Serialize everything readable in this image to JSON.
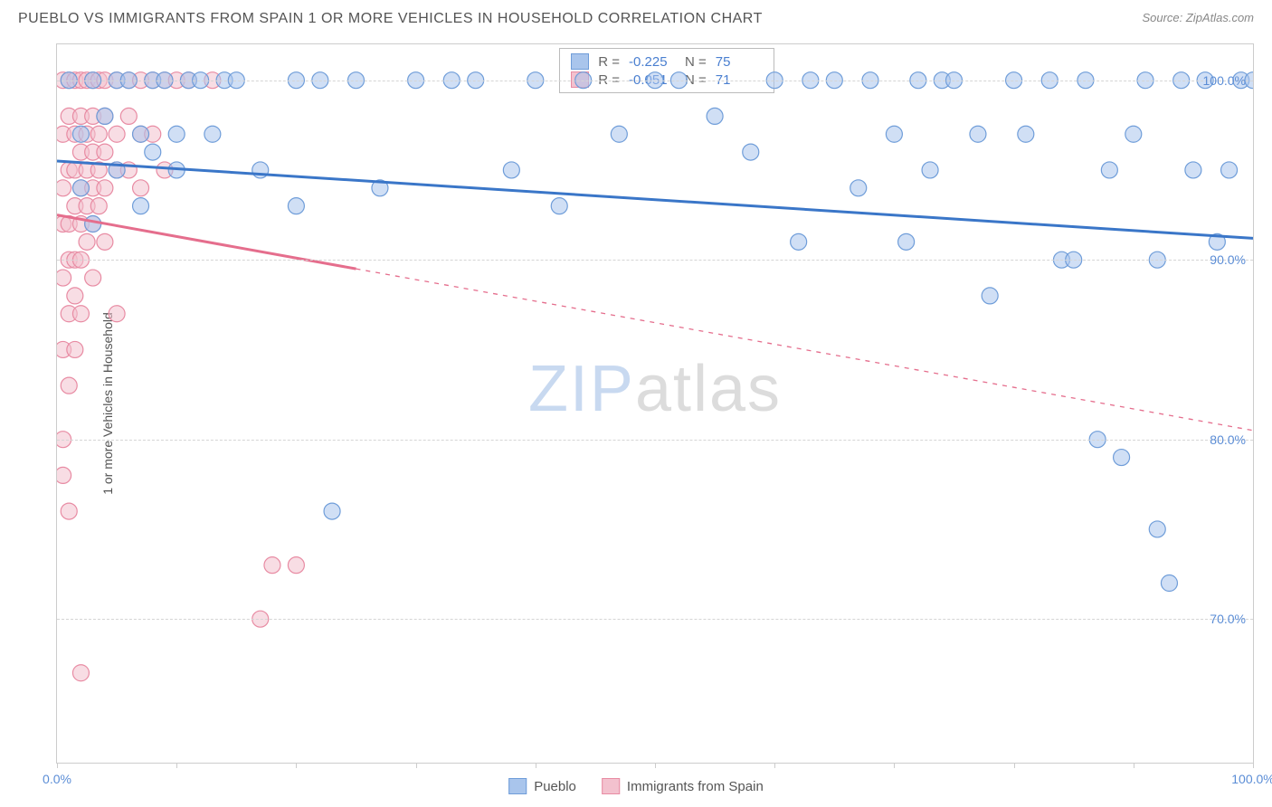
{
  "header": {
    "title": "PUEBLO VS IMMIGRANTS FROM SPAIN 1 OR MORE VEHICLES IN HOUSEHOLD CORRELATION CHART",
    "source": "Source: ZipAtlas.com"
  },
  "chart": {
    "type": "scatter",
    "ylabel": "1 or more Vehicles in Household",
    "xlim": [
      0,
      100
    ],
    "ylim": [
      62,
      102
    ],
    "yticks": [
      70,
      80,
      90,
      100
    ],
    "ytick_labels": [
      "70.0%",
      "80.0%",
      "90.0%",
      "100.0%"
    ],
    "xticks": [
      0,
      10,
      20,
      30,
      40,
      50,
      60,
      70,
      80,
      90,
      100
    ],
    "xtick_labels_shown": {
      "0": "0.0%",
      "100": "100.0%"
    },
    "grid_color": "#d5d5d5",
    "border_color": "#cccccc",
    "background_color": "#ffffff",
    "marker_radius": 9,
    "marker_opacity": 0.55,
    "series": [
      {
        "name": "Pueblo",
        "color_fill": "#a9c5ec",
        "color_stroke": "#6f9dd9",
        "line_color": "#3a76c8",
        "line_width": 3,
        "R": "-0.225",
        "N": "75",
        "regression": {
          "x1": 0,
          "y1": 95.5,
          "x2": 100,
          "y2": 91.2,
          "dashed_from_x": null
        },
        "points": [
          [
            1,
            100
          ],
          [
            2,
            97
          ],
          [
            2,
            94
          ],
          [
            3,
            100
          ],
          [
            3,
            92
          ],
          [
            4,
            98
          ],
          [
            5,
            100
          ],
          [
            5,
            95
          ],
          [
            6,
            100
          ],
          [
            7,
            97
          ],
          [
            7,
            93
          ],
          [
            8,
            100
          ],
          [
            8,
            96
          ],
          [
            9,
            100
          ],
          [
            10,
            97
          ],
          [
            10,
            95
          ],
          [
            11,
            100
          ],
          [
            12,
            100
          ],
          [
            13,
            97
          ],
          [
            14,
            100
          ],
          [
            15,
            100
          ],
          [
            17,
            95
          ],
          [
            20,
            93
          ],
          [
            20,
            100
          ],
          [
            22,
            100
          ],
          [
            23,
            76
          ],
          [
            25,
            100
          ],
          [
            27,
            94
          ],
          [
            30,
            100
          ],
          [
            33,
            100
          ],
          [
            35,
            100
          ],
          [
            38,
            95
          ],
          [
            40,
            100
          ],
          [
            42,
            93
          ],
          [
            44,
            100
          ],
          [
            47,
            97
          ],
          [
            50,
            100
          ],
          [
            52,
            100
          ],
          [
            55,
            98
          ],
          [
            58,
            96
          ],
          [
            60,
            100
          ],
          [
            62,
            91
          ],
          [
            63,
            100
          ],
          [
            65,
            100
          ],
          [
            67,
            94
          ],
          [
            68,
            100
          ],
          [
            70,
            97
          ],
          [
            71,
            91
          ],
          [
            72,
            100
          ],
          [
            73,
            95
          ],
          [
            74,
            100
          ],
          [
            75,
            100
          ],
          [
            77,
            97
          ],
          [
            78,
            88
          ],
          [
            80,
            100
          ],
          [
            81,
            97
          ],
          [
            83,
            100
          ],
          [
            84,
            90
          ],
          [
            85,
            90
          ],
          [
            86,
            100
          ],
          [
            87,
            80
          ],
          [
            88,
            95
          ],
          [
            89,
            79
          ],
          [
            90,
            97
          ],
          [
            91,
            100
          ],
          [
            92,
            90
          ],
          [
            92,
            75
          ],
          [
            93,
            72
          ],
          [
            94,
            100
          ],
          [
            95,
            95
          ],
          [
            96,
            100
          ],
          [
            97,
            91
          ],
          [
            98,
            95
          ],
          [
            99,
            100
          ],
          [
            100,
            100
          ]
        ]
      },
      {
        "name": "Immigrants from Spain",
        "color_fill": "#f3c1ce",
        "color_stroke": "#e88ba3",
        "line_color": "#e56e8d",
        "line_width": 3,
        "R": "-0.051",
        "N": "71",
        "regression": {
          "x1": 0,
          "y1": 92.5,
          "x2": 100,
          "y2": 80.5,
          "dashed_from_x": 25
        },
        "points": [
          [
            0.5,
            100
          ],
          [
            0.5,
            97
          ],
          [
            0.5,
            94
          ],
          [
            0.5,
            92
          ],
          [
            0.5,
            89
          ],
          [
            0.5,
            85
          ],
          [
            0.5,
            80
          ],
          [
            0.5,
            78
          ],
          [
            1,
            100
          ],
          [
            1,
            98
          ],
          [
            1,
            95
          ],
          [
            1,
            92
          ],
          [
            1,
            90
          ],
          [
            1,
            87
          ],
          [
            1,
            83
          ],
          [
            1,
            76
          ],
          [
            1.5,
            100
          ],
          [
            1.5,
            97
          ],
          [
            1.5,
            95
          ],
          [
            1.5,
            93
          ],
          [
            1.5,
            90
          ],
          [
            1.5,
            88
          ],
          [
            1.5,
            85
          ],
          [
            2,
            100
          ],
          [
            2,
            98
          ],
          [
            2,
            96
          ],
          [
            2,
            94
          ],
          [
            2,
            92
          ],
          [
            2,
            90
          ],
          [
            2,
            87
          ],
          [
            2,
            67
          ],
          [
            2.5,
            100
          ],
          [
            2.5,
            97
          ],
          [
            2.5,
            95
          ],
          [
            2.5,
            93
          ],
          [
            2.5,
            91
          ],
          [
            3,
            100
          ],
          [
            3,
            98
          ],
          [
            3,
            96
          ],
          [
            3,
            94
          ],
          [
            3,
            92
          ],
          [
            3,
            89
          ],
          [
            3.5,
            100
          ],
          [
            3.5,
            97
          ],
          [
            3.5,
            95
          ],
          [
            3.5,
            93
          ],
          [
            4,
            100
          ],
          [
            4,
            98
          ],
          [
            4,
            96
          ],
          [
            4,
            94
          ],
          [
            4,
            91
          ],
          [
            5,
            100
          ],
          [
            5,
            97
          ],
          [
            5,
            95
          ],
          [
            5,
            87
          ],
          [
            6,
            100
          ],
          [
            6,
            98
          ],
          [
            6,
            95
          ],
          [
            7,
            100
          ],
          [
            7,
            97
          ],
          [
            7,
            94
          ],
          [
            8,
            100
          ],
          [
            8,
            97
          ],
          [
            9,
            100
          ],
          [
            9,
            95
          ],
          [
            10,
            100
          ],
          [
            11,
            100
          ],
          [
            13,
            100
          ],
          [
            17,
            70
          ],
          [
            18,
            73
          ],
          [
            20,
            73
          ]
        ]
      }
    ],
    "stats_legend": {
      "rows": [
        {
          "swatch_fill": "#a9c5ec",
          "swatch_stroke": "#6f9dd9",
          "R": "-0.225",
          "N": "75"
        },
        {
          "swatch_fill": "#f3c1ce",
          "swatch_stroke": "#e88ba3",
          "R": "-0.051",
          "N": "71"
        }
      ]
    },
    "bottom_legend": [
      {
        "swatch_fill": "#a9c5ec",
        "swatch_stroke": "#6f9dd9",
        "label": "Pueblo"
      },
      {
        "swatch_fill": "#f3c1ce",
        "swatch_stroke": "#e88ba3",
        "label": "Immigrants from Spain"
      }
    ],
    "watermark": {
      "part1": "ZIP",
      "part2": "atlas",
      "fontsize": 72
    }
  }
}
